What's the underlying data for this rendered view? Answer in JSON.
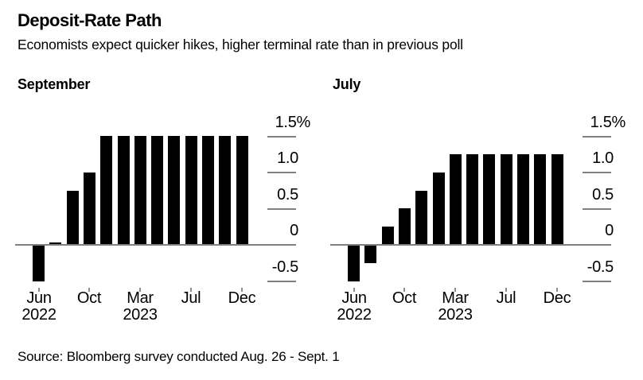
{
  "header": {
    "title": "Deposit-Rate Path",
    "subtitle": "Economists expect quicker hikes, higher terminal rate than in previous poll"
  },
  "footer": {
    "source": "Source: Bloomberg survey conducted Aug. 26 - Sept. 1"
  },
  "colors": {
    "bar": "#000000",
    "zero_line": "#7f7f7f",
    "grid_line": "#7f7f7f",
    "tick_mark": "#8c8c8c",
    "text": "#000000",
    "background": "#ffffff"
  },
  "chart_data": [
    {
      "type": "bar",
      "title": "September",
      "unit": "%",
      "categories": [
        "Jun 2022",
        "Jul 2022",
        "Sep 2022",
        "Oct 2022",
        "Dec 2022",
        "Feb 2023",
        "Mar 2023",
        "May 2023",
        "Jun 2023",
        "Jul 2023",
        "Sep 2023",
        "Oct 2023",
        "Dec 2023"
      ],
      "values": [
        -0.5,
        0,
        0.75,
        1.0,
        1.5,
        1.5,
        1.5,
        1.5,
        1.5,
        1.5,
        1.5,
        1.5,
        1.5
      ],
      "ylim": [
        -0.5,
        1.5
      ],
      "y_axis_side": "right",
      "grid": "short-right-segments",
      "y_ticks": [
        {
          "label": "1.5%",
          "value": 1.5
        },
        {
          "label": "1.0",
          "value": 1.0
        },
        {
          "label": "0.5",
          "value": 0.5
        },
        {
          "label": "0",
          "value": 0
        },
        {
          "label": "-0.5",
          "value": -0.5
        }
      ],
      "x_ticks": [
        {
          "index": 0,
          "line1": "Jun",
          "line2": "2022"
        },
        {
          "index": 3,
          "line1": "Oct"
        },
        {
          "index": 6,
          "line1": "Mar",
          "line2": "2023"
        },
        {
          "index": 9,
          "line1": "Jul"
        },
        {
          "index": 12,
          "line1": "Dec"
        }
      ]
    },
    {
      "type": "bar",
      "title": "July",
      "unit": "%",
      "categories": [
        "Jun 2022",
        "Jul 2022",
        "Sep 2022",
        "Oct 2022",
        "Dec 2022",
        "Feb 2023",
        "Mar 2023",
        "May 2023",
        "Jun 2023",
        "Jul 2023",
        "Sep 2023",
        "Oct 2023",
        "Dec 2023"
      ],
      "values": [
        -0.5,
        -0.25,
        0.25,
        0.5,
        0.75,
        1.0,
        1.25,
        1.25,
        1.25,
        1.25,
        1.25,
        1.25,
        1.25
      ],
      "ylim": [
        -0.5,
        1.5
      ],
      "y_axis_side": "right",
      "grid": "short-right-segments",
      "y_ticks": [
        {
          "label": "1.5%",
          "value": 1.5
        },
        {
          "label": "1.0",
          "value": 1.0
        },
        {
          "label": "0.5",
          "value": 0.5
        },
        {
          "label": "0",
          "value": 0
        },
        {
          "label": "-0.5",
          "value": -0.5
        }
      ],
      "x_ticks": [
        {
          "index": 0,
          "line1": "Jun",
          "line2": "2022"
        },
        {
          "index": 3,
          "line1": "Oct"
        },
        {
          "index": 6,
          "line1": "Mar",
          "line2": "2023"
        },
        {
          "index": 9,
          "line1": "Jul"
        },
        {
          "index": 12,
          "line1": "Dec"
        }
      ]
    }
  ]
}
